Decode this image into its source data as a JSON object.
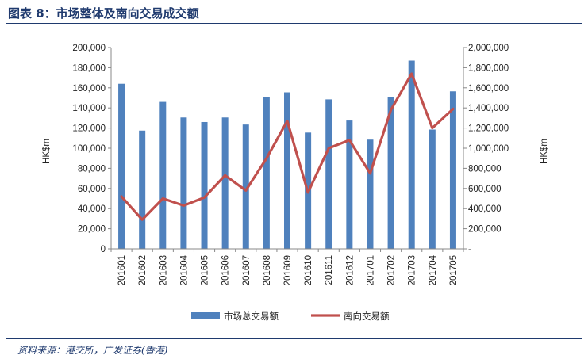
{
  "figure": {
    "title": "图表 8：市场整体及南向交易成交额",
    "source": "资料来源：港交所，广发证券(香港)"
  },
  "colors": {
    "bar": "#4f81bd",
    "line": "#c0504d",
    "title": "#1f3a6e"
  },
  "chart_data": {
    "type": "bar",
    "categories": [
      "201601",
      "201602",
      "201603",
      "201604",
      "201605",
      "201606",
      "201607",
      "201608",
      "201609",
      "201610",
      "201611",
      "201612",
      "201701",
      "201702",
      "201703",
      "201704",
      "201705"
    ],
    "series": [
      {
        "name": "市场总交易额",
        "type": "bar",
        "axis": "left",
        "values": [
          164000,
          117500,
          146000,
          130500,
          126000,
          130500,
          123500,
          150500,
          155500,
          115500,
          148500,
          127500,
          108500,
          151000,
          187000,
          118500,
          156500
        ]
      },
      {
        "name": "南向交易额",
        "type": "line",
        "axis": "right",
        "values": [
          520000,
          290000,
          500000,
          430000,
          510000,
          730000,
          580000,
          900000,
          1270000,
          560000,
          1000000,
          1080000,
          750000,
          1380000,
          1740000,
          1200000,
          1390000
        ]
      }
    ],
    "y_left": {
      "label": "HK$m",
      "ylim": [
        0,
        200000
      ],
      "ticks": [
        "0",
        "20,000",
        "40,000",
        "60,000",
        "80,000",
        "100,000",
        "120,000",
        "140,000",
        "160,000",
        "180,000",
        "200,000"
      ]
    },
    "y_right": {
      "label": "HK$m",
      "ylim": [
        0,
        2000000
      ],
      "ticks": [
        "-",
        "200,000",
        "400,000",
        "600,000",
        "800,000",
        "1,000,000",
        "1,200,000",
        "1,400,000",
        "1,600,000",
        "1,800,000",
        "2,000,000"
      ]
    },
    "grid": false,
    "legend": "bottom-center"
  }
}
